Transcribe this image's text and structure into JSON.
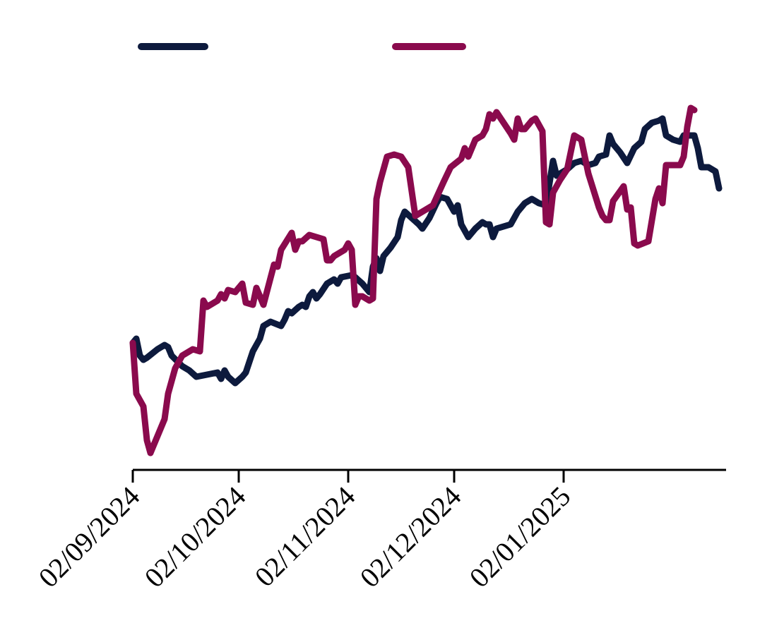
{
  "chart_data": {
    "type": "line",
    "title": "",
    "xlabel": "",
    "ylabel": "",
    "x_tick_labels": [
      "02/09/2024",
      "02/10/2024",
      "02/11/2024",
      "02/12/2024",
      "02/01/2025"
    ],
    "xlim": [
      "2024-09-02",
      "2025-02-17"
    ],
    "ylim": [
      0,
      100
    ],
    "y_axis_visible": false,
    "grid": false,
    "legend": {
      "placement": "top",
      "labels_visible": false
    },
    "series": [
      {
        "color": "#0d1a3d",
        "points": [
          [
            "2024-09-02",
            30
          ],
          [
            "2024-09-03",
            31
          ],
          [
            "2024-09-04",
            27
          ],
          [
            "2024-09-05",
            26
          ],
          [
            "2024-09-06",
            26.5
          ],
          [
            "2024-09-09",
            28.5
          ],
          [
            "2024-09-11",
            29.5
          ],
          [
            "2024-09-12",
            29
          ],
          [
            "2024-09-13",
            27
          ],
          [
            "2024-09-16",
            24.5
          ],
          [
            "2024-09-18",
            23.5
          ],
          [
            "2024-09-20",
            22
          ],
          [
            "2024-09-23",
            22.5
          ],
          [
            "2024-09-26",
            23
          ],
          [
            "2024-09-27",
            21.5
          ],
          [
            "2024-09-28",
            23.5
          ],
          [
            "2024-09-29",
            22
          ],
          [
            "2024-10-01",
            20.5
          ],
          [
            "2024-10-03",
            22
          ],
          [
            "2024-10-04",
            23
          ],
          [
            "2024-10-06",
            28
          ],
          [
            "2024-10-08",
            31
          ],
          [
            "2024-10-09",
            34
          ],
          [
            "2024-10-11",
            35
          ],
          [
            "2024-10-14",
            34
          ],
          [
            "2024-10-15",
            35.5
          ],
          [
            "2024-10-16",
            37.5
          ],
          [
            "2024-10-17",
            37
          ],
          [
            "2024-10-19",
            38.5
          ],
          [
            "2024-10-20",
            39
          ],
          [
            "2024-10-21",
            38.5
          ],
          [
            "2024-10-22",
            41
          ],
          [
            "2024-10-23",
            42
          ],
          [
            "2024-10-24",
            40.5
          ],
          [
            "2024-10-25",
            41.5
          ],
          [
            "2024-10-27",
            44
          ],
          [
            "2024-10-29",
            45
          ],
          [
            "2024-10-30",
            44
          ],
          [
            "2024-10-31",
            45.5
          ],
          [
            "2024-11-03",
            46
          ],
          [
            "2024-11-04",
            45.5
          ],
          [
            "2024-11-06",
            44
          ],
          [
            "2024-11-08",
            42
          ],
          [
            "2024-11-09",
            48
          ],
          [
            "2024-11-10",
            50
          ],
          [
            "2024-11-11",
            47
          ],
          [
            "2024-11-12",
            50.5
          ],
          [
            "2024-11-14",
            52.5
          ],
          [
            "2024-11-16",
            55
          ],
          [
            "2024-11-17",
            59
          ],
          [
            "2024-11-18",
            61
          ],
          [
            "2024-11-22",
            58
          ],
          [
            "2024-11-23",
            57
          ],
          [
            "2024-11-25",
            59.5
          ],
          [
            "2024-11-27",
            63
          ],
          [
            "2024-11-28",
            64.5
          ],
          [
            "2024-11-30",
            64
          ],
          [
            "2024-12-01",
            62.5
          ],
          [
            "2024-12-02",
            61
          ],
          [
            "2024-12-03",
            62.5
          ],
          [
            "2024-12-04",
            58
          ],
          [
            "2024-12-05",
            56.5
          ],
          [
            "2024-12-06",
            55
          ],
          [
            "2024-12-08",
            57
          ],
          [
            "2024-12-10",
            58.5
          ],
          [
            "2024-12-11",
            58
          ],
          [
            "2024-12-12",
            58
          ],
          [
            "2024-12-13",
            55
          ],
          [
            "2024-12-14",
            57
          ],
          [
            "2024-12-16",
            57.5
          ],
          [
            "2024-12-18",
            58
          ],
          [
            "2024-12-20",
            61
          ],
          [
            "2024-12-22",
            63
          ],
          [
            "2024-12-24",
            64
          ],
          [
            "2024-12-26",
            63
          ],
          [
            "2024-12-28",
            62.5
          ],
          [
            "2024-12-30",
            73
          ],
          [
            "2024-12-31",
            69.5
          ],
          [
            "2025-01-01",
            70
          ],
          [
            "2025-01-03",
            71
          ],
          [
            "2025-01-05",
            72.5
          ],
          [
            "2025-01-07",
            73
          ],
          [
            "2025-01-09",
            72
          ],
          [
            "2025-01-11",
            72.5
          ],
          [
            "2025-01-12",
            74
          ],
          [
            "2025-01-14",
            74.5
          ],
          [
            "2025-01-15",
            79
          ],
          [
            "2025-01-16",
            77
          ],
          [
            "2025-01-18",
            75
          ],
          [
            "2025-01-20",
            72.5
          ],
          [
            "2025-01-22",
            76
          ],
          [
            "2025-01-24",
            77.5
          ],
          [
            "2025-01-25",
            80.5
          ],
          [
            "2025-01-27",
            82
          ],
          [
            "2025-01-29",
            82.5
          ],
          [
            "2025-01-30",
            83
          ],
          [
            "2025-01-31",
            79
          ],
          [
            "2025-02-02",
            78
          ],
          [
            "2025-02-04",
            77.5
          ],
          [
            "2025-02-05",
            79
          ],
          [
            "2025-02-08",
            79
          ],
          [
            "2025-02-09",
            76
          ],
          [
            "2025-02-10",
            71.5
          ],
          [
            "2025-02-12",
            71.5
          ],
          [
            "2025-02-14",
            70.5
          ],
          [
            "2025-02-15",
            66.5
          ]
        ]
      },
      {
        "color": "#8a0a4d",
        "points": [
          [
            "2024-09-02",
            30
          ],
          [
            "2024-09-03",
            18
          ],
          [
            "2024-09-04",
            16.5
          ],
          [
            "2024-09-05",
            15
          ],
          [
            "2024-09-06",
            7
          ],
          [
            "2024-09-07",
            4
          ],
          [
            "2024-09-09",
            8
          ],
          [
            "2024-09-11",
            12
          ],
          [
            "2024-09-12",
            18
          ],
          [
            "2024-09-14",
            24
          ],
          [
            "2024-09-16",
            27
          ],
          [
            "2024-09-19",
            28.5
          ],
          [
            "2024-09-21",
            28
          ],
          [
            "2024-09-22",
            40
          ],
          [
            "2024-09-23",
            38.5
          ],
          [
            "2024-09-26",
            40
          ],
          [
            "2024-09-27",
            41.5
          ],
          [
            "2024-09-28",
            40.5
          ],
          [
            "2024-09-29",
            42.5
          ],
          [
            "2024-10-01",
            42
          ],
          [
            "2024-10-03",
            44
          ],
          [
            "2024-10-04",
            39.5
          ],
          [
            "2024-10-06",
            39
          ],
          [
            "2024-10-07",
            43
          ],
          [
            "2024-10-09",
            39
          ],
          [
            "2024-10-12",
            48.5
          ],
          [
            "2024-10-13",
            48
          ],
          [
            "2024-10-14",
            52
          ],
          [
            "2024-10-17",
            56
          ],
          [
            "2024-10-18",
            52
          ],
          [
            "2024-10-19",
            54
          ],
          [
            "2024-10-20",
            54
          ],
          [
            "2024-10-22",
            55.5
          ],
          [
            "2024-10-24",
            55
          ],
          [
            "2024-10-26",
            54.5
          ],
          [
            "2024-10-27",
            49.5
          ],
          [
            "2024-10-28",
            49.5
          ],
          [
            "2024-10-29",
            50.5
          ],
          [
            "2024-10-30",
            51
          ],
          [
            "2024-11-01",
            52
          ],
          [
            "2024-11-02",
            53.5
          ],
          [
            "2024-11-03",
            52
          ],
          [
            "2024-11-04",
            39
          ],
          [
            "2024-11-05",
            41
          ],
          [
            "2024-11-06",
            41
          ],
          [
            "2024-11-08",
            40
          ],
          [
            "2024-11-09",
            40.5
          ],
          [
            "2024-11-10",
            64
          ],
          [
            "2024-11-11",
            68
          ],
          [
            "2024-11-13",
            74
          ],
          [
            "2024-11-15",
            74.5
          ],
          [
            "2024-11-17",
            74
          ],
          [
            "2024-11-19",
            71.5
          ],
          [
            "2024-11-21",
            60
          ],
          [
            "2024-11-24",
            61.5
          ],
          [
            "2024-11-26",
            62.5
          ],
          [
            "2024-11-29",
            68
          ],
          [
            "2024-12-01",
            71.5
          ],
          [
            "2024-12-04",
            73.5
          ],
          [
            "2024-12-05",
            76
          ],
          [
            "2024-12-06",
            74
          ],
          [
            "2024-12-08",
            78
          ],
          [
            "2024-12-10",
            79
          ],
          [
            "2024-12-11",
            80.5
          ],
          [
            "2024-12-12",
            84
          ],
          [
            "2024-12-13",
            83
          ],
          [
            "2024-12-14",
            84.5
          ],
          [
            "2024-12-16",
            82
          ],
          [
            "2024-12-18",
            79.5
          ],
          [
            "2024-12-19",
            78
          ],
          [
            "2024-12-20",
            83
          ],
          [
            "2024-12-21",
            80.5
          ],
          [
            "2024-12-22",
            80.5
          ],
          [
            "2024-12-24",
            82.5
          ],
          [
            "2024-12-25",
            83
          ],
          [
            "2024-12-27",
            80
          ],
          [
            "2024-12-28",
            58.5
          ],
          [
            "2024-12-29",
            58
          ],
          [
            "2024-12-30",
            65.5
          ],
          [
            "2025-01-01",
            68.5
          ],
          [
            "2025-01-03",
            71
          ],
          [
            "2025-01-05",
            79
          ],
          [
            "2025-01-07",
            78
          ],
          [
            "2025-01-09",
            70
          ],
          [
            "2025-01-12",
            62
          ],
          [
            "2025-01-13",
            60
          ],
          [
            "2025-01-14",
            59
          ],
          [
            "2025-01-15",
            59
          ],
          [
            "2025-01-16",
            63.5
          ],
          [
            "2025-01-19",
            67
          ],
          [
            "2025-01-20",
            61.5
          ],
          [
            "2025-01-21",
            62
          ],
          [
            "2025-01-22",
            53.5
          ],
          [
            "2025-01-23",
            53
          ],
          [
            "2025-01-26",
            54
          ],
          [
            "2025-01-28",
            64
          ],
          [
            "2025-01-29",
            66.5
          ],
          [
            "2025-01-30",
            63
          ],
          [
            "2025-01-31",
            72
          ],
          [
            "2025-02-04",
            72
          ],
          [
            "2025-02-05",
            74
          ],
          [
            "2025-02-06",
            81
          ],
          [
            "2025-02-07",
            85.5
          ],
          [
            "2025-02-08",
            85
          ]
        ]
      }
    ]
  }
}
